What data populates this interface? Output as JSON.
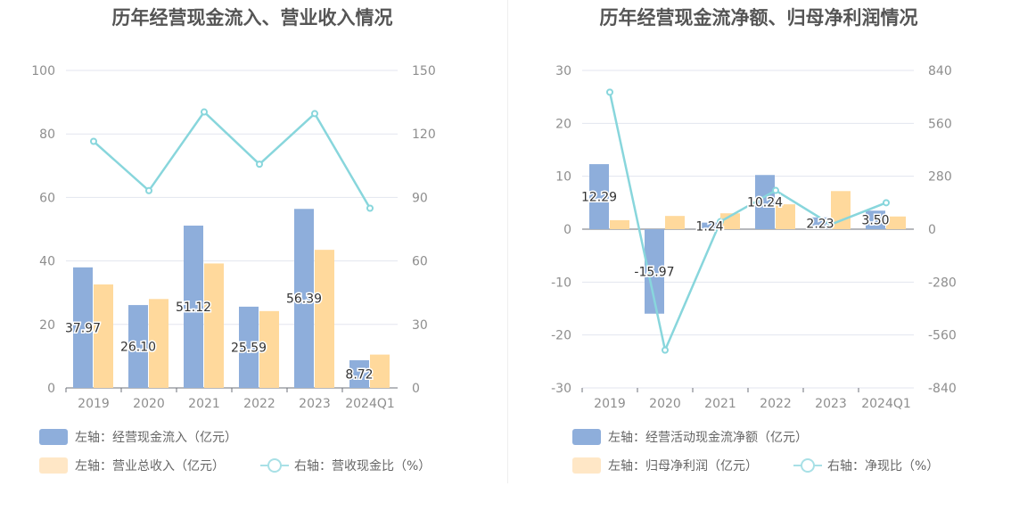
{
  "colors": {
    "bar_blue": "#8eaedb",
    "bar_yellow": "#ffd99c",
    "line": "#88d6dc",
    "legend_blue": "#8eaedb",
    "legend_yellow": "#ffe7c6",
    "grid": "#e3e6ef"
  },
  "legend_icons": [
    "bar-swatch-icon",
    "line-marker-icon"
  ],
  "chart_data": [
    {
      "type": "bar",
      "title": "历年经营现金流入、营业收入情况",
      "categories": [
        "2019",
        "2020",
        "2021",
        "2022",
        "2023",
        "2024Q1"
      ],
      "left_ticks": [
        "100",
        "80",
        "60",
        "40",
        "20",
        "0"
      ],
      "right_ticks": [
        "150",
        "120",
        "90",
        "60",
        "30",
        "0"
      ],
      "ylim_left": [
        0,
        100
      ],
      "ylim_right": [
        0,
        150
      ],
      "series": [
        {
          "name": "左轴：经营现金流入（亿元）",
          "axis": "left",
          "kind": "bar",
          "values": [
            37.97,
            26.1,
            51.12,
            25.59,
            56.39,
            8.72
          ],
          "labels": [
            "37.97",
            "26.10",
            "51.12",
            "25.59",
            "56.39",
            "8.72"
          ]
        },
        {
          "name": "左轴：营业总收入（亿元）",
          "axis": "left",
          "kind": "bar",
          "values": [
            32.6,
            28.0,
            39.2,
            24.2,
            43.5,
            10.5
          ]
        },
        {
          "name": "右轴：营收现金比（%）",
          "axis": "right",
          "kind": "line",
          "values": [
            116.5,
            93.2,
            130.4,
            105.7,
            129.6,
            84.9
          ]
        }
      ],
      "grid": true,
      "legend_position": "bottom-left"
    },
    {
      "type": "bar",
      "title": "历年经营现金流净额、归母净利润情况",
      "categories": [
        "2019",
        "2020",
        "2021",
        "2022",
        "2023",
        "2024Q1"
      ],
      "left_ticks": [
        "30",
        "20",
        "10",
        "0",
        "-10",
        "-20",
        "-30"
      ],
      "right_ticks": [
        "840",
        "560",
        "280",
        "0",
        "-280",
        "-560",
        "-840"
      ],
      "ylim_left": [
        -30,
        30
      ],
      "ylim_right": [
        -840,
        840
      ],
      "series": [
        {
          "name": "左轴：经营活动现金流净额（亿元）",
          "axis": "left",
          "kind": "bar",
          "values": [
            12.29,
            -15.97,
            1.24,
            10.24,
            2.23,
            3.5
          ],
          "labels": [
            "12.29",
            "-15.97",
            "1.24",
            "10.24",
            "2.23",
            "3.50"
          ]
        },
        {
          "name": "左轴：归母净利润（亿元）",
          "axis": "left",
          "kind": "bar",
          "values": [
            1.7,
            2.5,
            3.0,
            4.7,
            7.2,
            2.4
          ]
        },
        {
          "name": "右轴：净现比（%）",
          "axis": "right",
          "kind": "line",
          "values": [
            725,
            -640,
            40,
            205,
            25,
            140
          ]
        }
      ],
      "grid": true,
      "legend_position": "bottom-left"
    }
  ]
}
